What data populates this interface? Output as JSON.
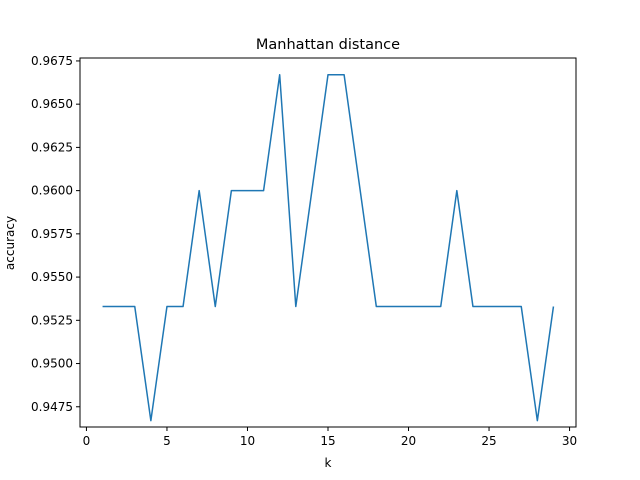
{
  "chart_data": {
    "type": "line",
    "title": "Manhattan distance",
    "xlabel": "k",
    "ylabel": "accuracy",
    "xlim": [
      -0.4,
      30.4
    ],
    "ylim": [
      0.94633,
      0.96767
    ],
    "xticks": [
      0,
      5,
      10,
      15,
      20,
      25,
      30
    ],
    "yticks": [
      0.9475,
      0.95,
      0.9525,
      0.955,
      0.9575,
      0.96,
      0.9625,
      0.965,
      0.9675
    ],
    "xtick_labels": [
      "0",
      "5",
      "10",
      "15",
      "20",
      "25",
      "30"
    ],
    "ytick_labels": [
      "0.9475",
      "0.9500",
      "0.9525",
      "0.9550",
      "0.9575",
      "0.9600",
      "0.9625",
      "0.9650",
      "0.9675"
    ],
    "grid": false,
    "line_color": "#1f77b4",
    "series": [
      {
        "x": [
          1,
          2,
          3,
          4,
          5,
          6,
          7,
          8,
          9,
          10,
          11,
          12,
          13,
          14,
          15,
          16,
          17,
          18,
          19,
          20,
          21,
          22,
          23,
          24,
          25,
          26,
          27,
          28,
          29
        ],
        "values": [
          0.9533,
          0.9533,
          0.9533,
          0.9467,
          0.9533,
          0.9533,
          0.96,
          0.9533,
          0.96,
          0.96,
          0.96,
          0.9667,
          0.9533,
          0.96,
          0.9667,
          0.9667,
          0.96,
          0.9533,
          0.9533,
          0.9533,
          0.9533,
          0.9533,
          0.96,
          0.9533,
          0.9533,
          0.9533,
          0.9533,
          0.9467,
          0.9533
        ]
      }
    ]
  }
}
